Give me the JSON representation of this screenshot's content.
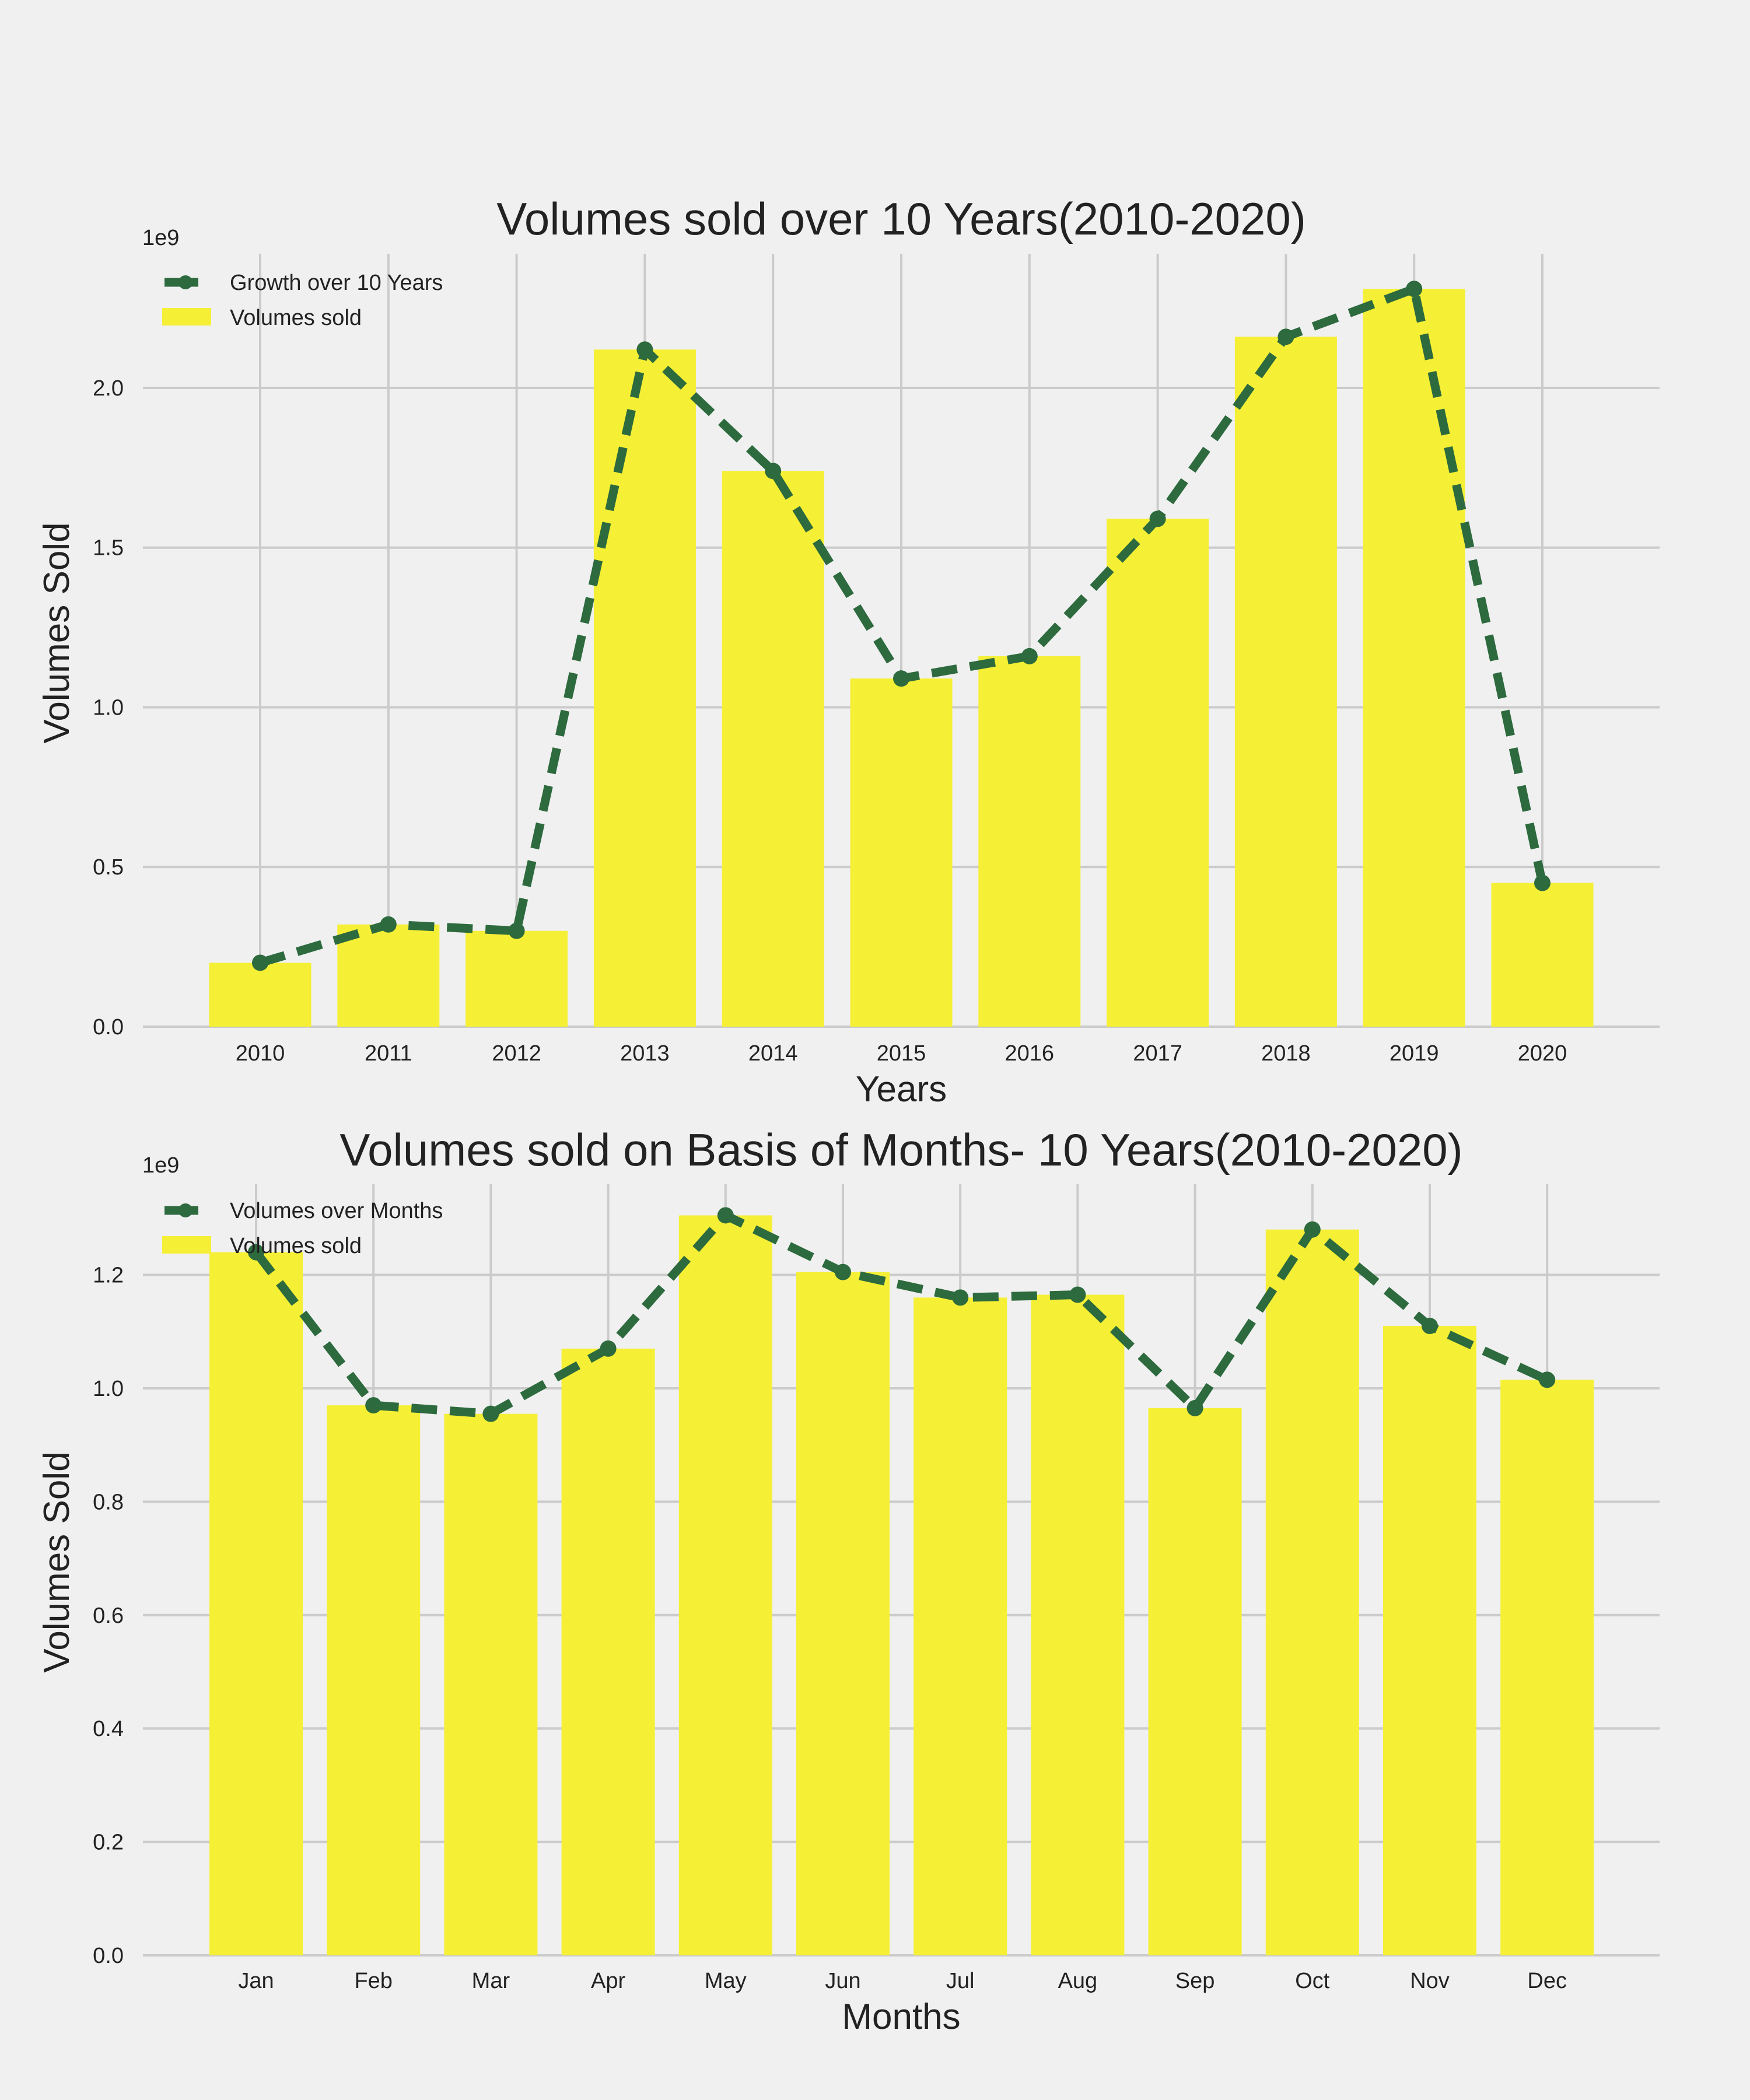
{
  "colors": {
    "background": "#f0f0f0",
    "bar": "#f5f035",
    "line": "#2d6a3e",
    "grid": "#cbcbcb"
  },
  "chart_data": [
    {
      "type": "bar",
      "title": "Volumes sold over 10 Years(2010-2020)",
      "xlabel": "Years",
      "ylabel": "Volumes Sold",
      "offset_label": "1e9",
      "categories": [
        "2010",
        "2011",
        "2012",
        "2013",
        "2014",
        "2015",
        "2016",
        "2017",
        "2018",
        "2019",
        "2020"
      ],
      "ylim": [
        0,
        2.42
      ],
      "yticks": [
        0.0,
        0.5,
        1.0,
        1.5,
        2.0
      ],
      "ytick_labels": [
        "0.0",
        "0.5",
        "1.0",
        "1.5",
        "2.0"
      ],
      "grid": true,
      "legend_position": "top-left",
      "series": [
        {
          "name": "Growth over 10 Years",
          "type": "line",
          "style": "dashed with circle markers",
          "values": [
            0.2,
            0.32,
            0.3,
            2.12,
            1.74,
            1.09,
            1.16,
            1.59,
            2.16,
            2.31,
            0.45
          ]
        },
        {
          "name": "Volumes sold",
          "type": "bar",
          "values": [
            0.2,
            0.32,
            0.3,
            2.12,
            1.74,
            1.09,
            1.16,
            1.59,
            2.16,
            2.31,
            0.45
          ]
        }
      ]
    },
    {
      "type": "bar",
      "title": "Volumes sold on Basis of Months-  10 Years(2010-2020)",
      "xlabel": "Months",
      "ylabel": "Volumes Sold",
      "offset_label": "1e9",
      "categories": [
        "Jan",
        "Feb",
        "Mar",
        "Apr",
        "May",
        "Jun",
        "Jul",
        "Aug",
        "Sep",
        "Oct",
        "Nov",
        "Dec"
      ],
      "ylim": [
        0,
        1.36
      ],
      "yticks": [
        0.0,
        0.2,
        0.4,
        0.6,
        0.8,
        1.0,
        1.2
      ],
      "ytick_labels": [
        "0.0",
        "0.2",
        "0.4",
        "0.6",
        "0.8",
        "1.0",
        "1.2"
      ],
      "grid": true,
      "legend_position": "top-left",
      "series": [
        {
          "name": "Volumes over Months",
          "type": "line",
          "style": "dashed with circle markers",
          "values": [
            1.24,
            0.97,
            0.955,
            1.07,
            1.305,
            1.205,
            1.16,
            1.165,
            0.965,
            1.28,
            1.11,
            1.015
          ]
        },
        {
          "name": "Volumes sold",
          "type": "bar",
          "values": [
            1.24,
            0.97,
            0.955,
            1.07,
            1.305,
            1.205,
            1.16,
            1.165,
            0.965,
            1.28,
            1.11,
            1.015
          ]
        }
      ]
    }
  ]
}
